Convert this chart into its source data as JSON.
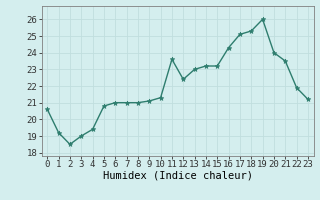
{
  "x": [
    0,
    1,
    2,
    3,
    4,
    5,
    6,
    7,
    8,
    9,
    10,
    11,
    12,
    13,
    14,
    15,
    16,
    17,
    18,
    19,
    20,
    21,
    22,
    23
  ],
  "y": [
    20.6,
    19.2,
    18.5,
    19.0,
    19.4,
    20.8,
    21.0,
    21.0,
    21.0,
    21.1,
    21.3,
    23.6,
    22.4,
    23.0,
    23.2,
    23.2,
    24.3,
    25.1,
    25.3,
    26.0,
    24.0,
    23.5,
    21.9,
    21.2
  ],
  "xlabel": "Humidex (Indice chaleur)",
  "ylim": [
    17.8,
    26.8
  ],
  "xlim": [
    -0.5,
    23.5
  ],
  "yticks": [
    18,
    19,
    20,
    21,
    22,
    23,
    24,
    25,
    26
  ],
  "xticks": [
    0,
    1,
    2,
    3,
    4,
    5,
    6,
    7,
    8,
    9,
    10,
    11,
    12,
    13,
    14,
    15,
    16,
    17,
    18,
    19,
    20,
    21,
    22,
    23
  ],
  "line_color": "#2e7d6e",
  "bg_color": "#d4eeee",
  "grid_color": "#c0dede",
  "marker": "*",
  "linewidth": 1.0,
  "markersize": 3.5,
  "tick_fontsize": 6.5,
  "xlabel_fontsize": 7.5
}
